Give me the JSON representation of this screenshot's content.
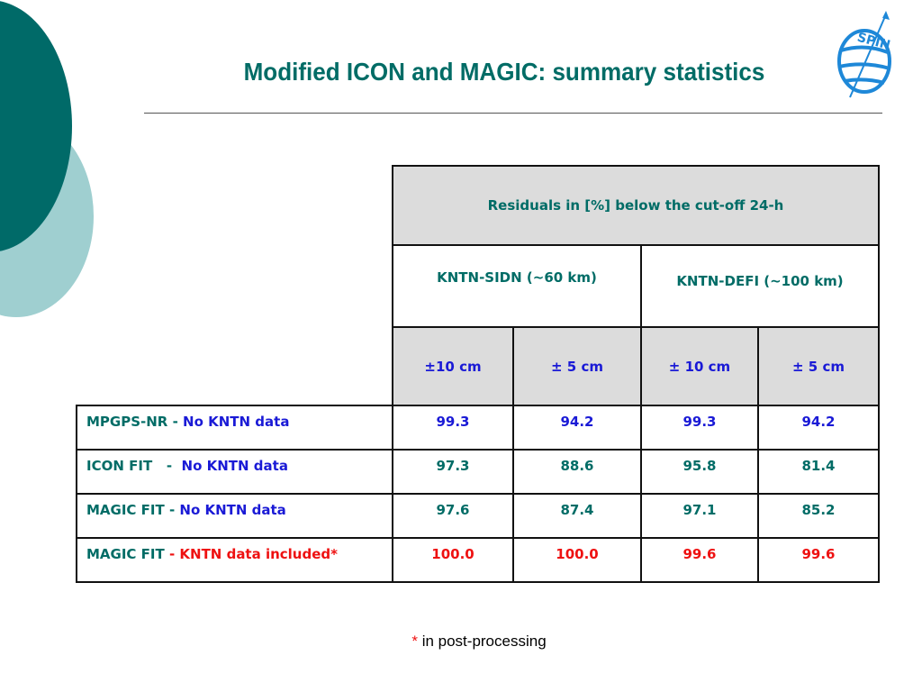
{
  "slide": {
    "title": "Modified ICON and MAGIC: summary statistics",
    "logo_text": "SPIN",
    "colors": {
      "teal_dark": "#006a68",
      "teal_light": "#9fcfd0",
      "title": "#006c66",
      "blue": "#1a1ad6",
      "red": "#ee1111",
      "header_gray": "#dcdcdc"
    }
  },
  "table": {
    "header_main": "Residuals in [%] below the cut-off 24-h",
    "groups": [
      "KNTN-SIDN (~60 km)",
      "KNTN-DEFI (~100 km)"
    ],
    "subheaders": [
      "±10 cm",
      "± 5 cm",
      "± 10 cm",
      "± 5 cm"
    ],
    "rows": [
      {
        "label_a": "MPGPS-NR",
        "sep": " - ",
        "label_b": "No KNTN data",
        "values": [
          "99.3",
          "94.2",
          "99.3",
          "94.2"
        ]
      },
      {
        "label_a": "ICON FIT",
        "sep": "   -  ",
        "label_b": "No KNTN data",
        "values": [
          "97.3",
          "88.6",
          "95.8",
          "81.4"
        ]
      },
      {
        "label_a": "MAGIC FIT",
        "sep": " - ",
        "label_b": "No KNTN data",
        "values": [
          "97.6",
          "87.4",
          "97.1",
          "85.2"
        ]
      },
      {
        "label_a": "MAGIC FIT",
        "sep": " - ",
        "label_b": "KNTN data included*",
        "values": [
          "100.0",
          "100.0",
          "99.6",
          "99.6"
        ]
      }
    ]
  },
  "footnote": {
    "star": "*",
    "text": " in post-processing"
  }
}
